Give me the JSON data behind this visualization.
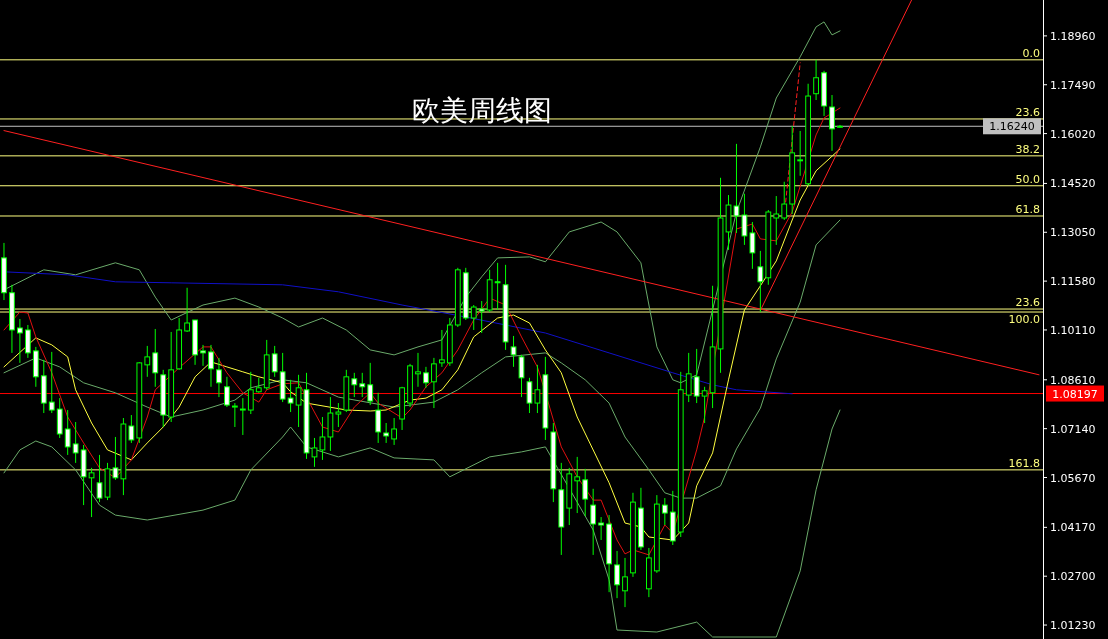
{
  "chart_data": {
    "type": "candlestick",
    "title": "欧美周线图",
    "categories": [
      null,
      null,
      null,
      null,
      null,
      null,
      null,
      null,
      null,
      null,
      null,
      null,
      null,
      null,
      null,
      null,
      null,
      null,
      null,
      null,
      null,
      null,
      null,
      null,
      null,
      null,
      null,
      null,
      null,
      null,
      null,
      null,
      null,
      null,
      null,
      null,
      null,
      null,
      null,
      null,
      null,
      null,
      null,
      null,
      null,
      null,
      null,
      null,
      null,
      null,
      null,
      null,
      null,
      null,
      null,
      null,
      null,
      null,
      null,
      null,
      null,
      null,
      null,
      null,
      null,
      null,
      null,
      null,
      null,
      null,
      null,
      null,
      null,
      null,
      null,
      null,
      null,
      null,
      null,
      null,
      null,
      null,
      null,
      null,
      null,
      null,
      null,
      null,
      null,
      null,
      null,
      null,
      null,
      null,
      null,
      null,
      null,
      null,
      null,
      null,
      null,
      null,
      null,
      null,
      null,
      null,
      null,
      null,
      null,
      null,
      null,
      null,
      null,
      null,
      null,
      null,
      null,
      null,
      null,
      null,
      null,
      null,
      null,
      null,
      null,
      null,
      null,
      null,
      null,
      null,
      null
    ],
    "ohlc": [
      [
        1.1228,
        1.1273,
        1.1101,
        1.1123
      ],
      [
        1.1123,
        1.1147,
        1.0942,
        1.1011
      ],
      [
        1.1017,
        1.1044,
        1.0912,
        1.1002
      ],
      [
        1.1011,
        1.1026,
        1.0927,
        1.0942
      ],
      [
        1.0948,
        1.096,
        1.084,
        1.087
      ],
      [
        1.0873,
        1.0921,
        1.0761,
        1.0791
      ],
      [
        1.0794,
        1.0945,
        1.0761,
        1.077
      ],
      [
        1.0773,
        1.0806,
        1.0686,
        1.0698
      ],
      [
        1.0713,
        1.077,
        1.0635,
        1.0659
      ],
      [
        1.0668,
        1.0734,
        1.0611,
        1.0641
      ],
      [
        1.065,
        1.0665,
        1.0484,
        1.0569
      ],
      [
        1.0566,
        1.0596,
        1.0448,
        1.0581
      ],
      [
        1.0551,
        1.0635,
        1.0493,
        1.0505
      ],
      [
        1.0508,
        1.0611,
        1.0499,
        1.0593
      ],
      [
        1.0596,
        1.0689,
        1.056,
        1.0566
      ],
      [
        1.0563,
        1.0746,
        1.0514,
        1.0728
      ],
      [
        1.0722,
        1.0755,
        1.0671,
        1.068
      ],
      [
        1.0686,
        1.0914,
        1.0671,
        1.0912
      ],
      [
        1.0906,
        1.0963,
        1.087,
        1.093
      ],
      [
        1.0942,
        1.1014,
        1.084,
        1.0882
      ],
      [
        1.0876,
        1.0891,
        1.0719,
        1.0755
      ],
      [
        1.0749,
        1.1005,
        1.0734,
        1.0891
      ],
      [
        1.0894,
        1.1047,
        1.0891,
        1.1011
      ],
      [
        1.1008,
        1.1138,
        1.1005,
        1.1032
      ],
      [
        1.1041,
        1.1041,
        1.0906,
        1.0936
      ],
      [
        1.0948,
        1.0966,
        1.0903,
        1.0942
      ],
      [
        1.0945,
        1.0966,
        1.084,
        1.0894
      ],
      [
        1.0891,
        1.0927,
        1.0809,
        1.0852
      ],
      [
        1.084,
        1.087,
        1.0779,
        1.0785
      ],
      [
        1.0782,
        1.0791,
        1.0719,
        1.0782
      ],
      [
        1.0773,
        1.0806,
        1.0695,
        1.0773
      ],
      [
        1.077,
        1.0885,
        1.0758,
        1.0831
      ],
      [
        1.0825,
        1.0867,
        1.0822,
        1.0837
      ],
      [
        1.0837,
        1.0981,
        1.0831,
        1.0936
      ],
      [
        1.0939,
        1.0963,
        1.087,
        1.0885
      ],
      [
        1.0885,
        1.0942,
        1.0794,
        1.0803
      ],
      [
        1.0806,
        1.0861,
        1.0764,
        1.0791
      ],
      [
        1.0785,
        1.0876,
        1.0719,
        1.0837
      ],
      [
        1.0831,
        1.0882,
        1.0623,
        1.0641
      ],
      [
        1.0629,
        1.0686,
        1.0599,
        1.0656
      ],
      [
        1.065,
        1.0749,
        1.062,
        1.0689
      ],
      [
        1.0689,
        1.0809,
        1.0647,
        1.0761
      ],
      [
        1.0758,
        1.0791,
        1.0719,
        1.0764
      ],
      [
        1.077,
        1.0891,
        1.0764,
        1.087
      ],
      [
        1.0864,
        1.0882,
        1.0809,
        1.0846
      ],
      [
        1.0849,
        1.0882,
        1.0809,
        1.084
      ],
      [
        1.0846,
        1.0912,
        1.0785,
        1.0797
      ],
      [
        1.077,
        1.0822,
        1.0671,
        1.0704
      ],
      [
        1.0701,
        1.0731,
        1.0671,
        1.0692
      ],
      [
        1.0683,
        1.0746,
        1.0665,
        1.0713
      ],
      [
        1.0743,
        1.084,
        1.071,
        1.0837
      ],
      [
        1.0791,
        1.0909,
        1.0779,
        1.0903
      ],
      [
        1.0879,
        1.0942,
        1.084,
        1.0885
      ],
      [
        1.0882,
        1.09,
        1.0837,
        1.0852
      ],
      [
        1.0855,
        1.0927,
        1.0776,
        1.0909
      ],
      [
        1.0912,
        1.1011,
        1.09,
        1.0921
      ],
      [
        1.0912,
        1.1047,
        1.0903,
        1.1026
      ],
      [
        1.1026,
        1.1198,
        1.102,
        1.1192
      ],
      [
        1.1183,
        1.1198,
        1.1041,
        1.1047
      ],
      [
        1.1047,
        1.1086,
        1.1011,
        1.108
      ],
      [
        1.1074,
        1.1098,
        1.1002,
        1.1068
      ],
      [
        1.1071,
        1.1192,
        1.1065,
        1.1162
      ],
      [
        1.1156,
        1.1213,
        1.1071,
        1.1153
      ],
      [
        1.1147,
        1.1207,
        1.0951,
        1.0975
      ],
      [
        1.096,
        1.0993,
        1.09,
        1.0936
      ],
      [
        1.093,
        1.0936,
        1.0809,
        1.0867
      ],
      [
        1.0855,
        1.0867,
        1.0761,
        1.0791
      ],
      [
        1.0791,
        1.0906,
        1.0761,
        1.0831
      ],
      [
        1.0876,
        1.093,
        1.068,
        1.0716
      ],
      [
        1.0704,
        1.0731,
        1.0493,
        1.0533
      ],
      [
        1.053,
        1.0611,
        1.0334,
        1.0418
      ],
      [
        1.0475,
        1.0596,
        1.0424,
        1.0578
      ],
      [
        1.0557,
        1.0629,
        1.046,
        1.0569
      ],
      [
        1.056,
        1.0593,
        1.0451,
        1.0502
      ],
      [
        1.0484,
        1.0533,
        1.0334,
        1.0427
      ],
      [
        1.043,
        1.0448,
        1.0379,
        1.0424
      ],
      [
        1.0427,
        1.0454,
        1.0222,
        1.0307
      ],
      [
        1.0304,
        1.0346,
        1.0204,
        1.0244
      ],
      [
        1.0226,
        1.0325,
        1.0177,
        1.0268
      ],
      [
        1.028,
        1.0521,
        1.0268,
        1.0493
      ],
      [
        1.0475,
        1.0536,
        1.0349,
        1.0358
      ],
      [
        1.0232,
        1.0355,
        1.0207,
        1.0325
      ],
      [
        1.0286,
        1.0514,
        1.028,
        1.0487
      ],
      [
        1.0484,
        1.0505,
        1.0424,
        1.046
      ],
      [
        1.0463,
        1.0527,
        1.0364,
        1.0376
      ],
      [
        1.0403,
        1.0885,
        1.0388,
        1.0831
      ],
      [
        1.0815,
        1.0942,
        1.0794,
        1.0879
      ],
      [
        1.087,
        1.0954,
        1.0791,
        1.0812
      ],
      [
        1.0812,
        1.084,
        1.0731,
        1.0828
      ],
      [
        1.0822,
        1.1144,
        1.0776,
        1.096
      ],
      [
        1.0954,
        1.1469,
        1.0882,
        1.1348
      ],
      [
        1.1306,
        1.1417,
        1.1252,
        1.1387
      ],
      [
        1.1384,
        1.1571,
        1.1303,
        1.1354
      ],
      [
        1.1357,
        1.1421,
        1.1267,
        1.1294
      ],
      [
        1.1303,
        1.1336,
        1.1195,
        1.1243
      ],
      [
        1.1201,
        1.1249,
        1.1065,
        1.1156
      ],
      [
        1.1168,
        1.1372,
        1.1147,
        1.1366
      ],
      [
        1.1348,
        1.1414,
        1.1267,
        1.136
      ],
      [
        1.1348,
        1.1457,
        1.1342,
        1.139
      ],
      [
        1.139,
        1.1625,
        1.136,
        1.1544
      ],
      [
        1.152,
        1.161,
        1.1475,
        1.1523
      ],
      [
        1.1451,
        1.1752,
        1.1445,
        1.1715
      ],
      [
        1.1722,
        1.1824,
        1.1703,
        1.177
      ],
      [
        1.1785,
        1.1791,
        1.1655,
        1.1685
      ],
      [
        1.1682,
        1.1718,
        1.155,
        1.1616
      ],
      [
        1.1624,
        1.1628,
        1.162,
        1.1624
      ],
      null,
      null,
      null,
      null,
      null,
      null,
      null,
      null,
      null,
      null,
      null,
      null,
      null,
      null,
      null,
      null,
      null,
      null,
      null,
      null,
      null,
      null,
      null,
      null,
      null
    ],
    "series": [
      {
        "type": "line",
        "color": "#6aaa6a",
        "values": [
          1.1132,
          null,
          null,
          null,
          null,
          1.1192,
          null,
          null,
          null,
          1.1177,
          null,
          null,
          null,
          null,
          1.1213,
          null,
          null,
          1.1192,
          null,
          1.111,
          null,
          1.1041,
          null,
          null,
          null,
          1.1086,
          null,
          null,
          null,
          1.1107,
          null,
          null,
          1.108,
          null,
          null,
          1.1047,
          null,
          1.102,
          null,
          null,
          1.1047,
          null,
          null,
          1.1011,
          null,
          null,
          1.0951,
          null,
          null,
          1.0936,
          null,
          null,
          1.096,
          null,
          null,
          1.0981,
          null,
          null,
          1.111,
          null,
          1.1171,
          null,
          1.1228,
          null,
          null,
          null,
          1.1231,
          null,
          1.1216,
          null,
          null,
          1.1306,
          null,
          null,
          null,
          1.1336,
          null,
          1.1306,
          null,
          null,
          1.1213,
          null,
          1.096,
          null,
          1.0861,
          1.0852,
          null,
          1.0876,
          null,
          null,
          null,
          null,
          1.1366,
          null,
          null,
          1.1562,
          null,
          1.1709,
          null,
          null,
          1.1833,
          null,
          1.1923,
          1.1938,
          1.1899,
          1.1911,
          null,
          null,
          null,
          null,
          null,
          null,
          null,
          null,
          null,
          null,
          null,
          null,
          null,
          null,
          null,
          null,
          null,
          null,
          null,
          null,
          null,
          null,
          null,
          null,
          null
        ]
      },
      {
        "type": "line",
        "color": "#6aaa6a",
        "values": [
          1.0882,
          null,
          null,
          null,
          1.0927,
          null,
          null,
          1.09,
          null,
          null,
          1.0852,
          null,
          null,
          null,
          1.0822,
          null,
          null,
          null,
          1.0779,
          null,
          null,
          1.0749,
          null,
          null,
          null,
          1.077,
          null,
          null,
          null,
          1.08,
          null,
          1.0837,
          null,
          null,
          null,
          1.0861,
          null,
          null,
          1.0852,
          null,
          null,
          null,
          1.0809,
          null,
          null,
          null,
          null,
          null,
          null,
          1.0779,
          null,
          null,
          null,
          null,
          1.0794,
          null,
          null,
          1.0831,
          null,
          null,
          1.0882,
          null,
          null,
          1.093,
          null,
          null,
          null,
          null,
          1.0942,
          null,
          1.0912,
          null,
          null,
          1.0861,
          null,
          null,
          1.0791,
          null,
          1.0689,
          null,
          null,
          1.059,
          null,
          1.0521,
          null,
          1.0505,
          null,
          1.0505,
          null,
          null,
          1.0542,
          null,
          1.0653,
          null,
          null,
          1.0776,
          null,
          1.0924,
          null,
          null,
          1.1095,
          null,
          1.1267,
          null,
          null,
          1.1342,
          null,
          null,
          null,
          null,
          null,
          null,
          null,
          null,
          null,
          null,
          null,
          null,
          null,
          null,
          null,
          null,
          null,
          null,
          null,
          null,
          null,
          null,
          null,
          null,
          null
        ]
      },
      {
        "type": "line",
        "color": "#6aaa6a",
        "values": [
          1.0581,
          null,
          1.065,
          null,
          1.0677,
          null,
          1.0659,
          null,
          null,
          1.059,
          null,
          null,
          1.0484,
          null,
          1.0454,
          null,
          null,
          null,
          1.0439,
          null,
          null,
          null,
          null,
          null,
          null,
          1.0469,
          null,
          null,
          null,
          1.0499,
          null,
          1.059,
          null,
          null,
          null,
          1.0689,
          1.0719,
          null,
          1.0659,
          null,
          null,
          null,
          1.0629,
          null,
          null,
          null,
          1.0656,
          null,
          null,
          1.0626,
          null,
          null,
          null,
          null,
          1.062,
          null,
          1.0569,
          null,
          null,
          null,
          null,
          1.0629,
          null,
          null,
          null,
          1.0644,
          null,
          null,
          1.0659,
          null,
          null,
          null,
          null,
          null,
          1.0409,
          null,
          1.0259,
          1.0108,
          null,
          null,
          null,
          null,
          1.0102,
          null,
          null,
          null,
          null,
          1.0132,
          null,
          1.0087,
          null,
          null,
          null,
          null,
          null,
          null,
          null,
          1.0087,
          null,
          null,
          1.0286,
          null,
          1.053,
          null,
          1.0713,
          1.077,
          null,
          null,
          null,
          null,
          null,
          null,
          null,
          null,
          null,
          null,
          null,
          null,
          null,
          null,
          null,
          null,
          null,
          null,
          null,
          null,
          null,
          null,
          null,
          null,
          null
        ]
      },
      {
        "type": "line",
        "color": "#1010c8",
        "values": [
          1.1186,
          null,
          null,
          null,
          null,
          null,
          null,
          null,
          1.1177,
          null,
          null,
          null,
          null,
          null,
          1.1156,
          null,
          null,
          null,
          null,
          null,
          null,
          1.1153,
          null,
          null,
          null,
          null,
          null,
          null,
          null,
          null,
          null,
          null,
          null,
          null,
          null,
          1.1147,
          null,
          null,
          null,
          null,
          null,
          null,
          1.1126,
          null,
          null,
          null,
          null,
          null,
          null,
          null,
          1.1086,
          null,
          null,
          null,
          null,
          null,
          null,
          null,
          1.105,
          null,
          null,
          null,
          null,
          null,
          null,
          null,
          null,
          null,
          1.1002,
          null,
          null,
          null,
          null,
          null,
          null,
          null,
          1.0942,
          null,
          null,
          null,
          null,
          null,
          null,
          null,
          1.0882,
          null,
          null,
          null,
          null,
          1.0846,
          null,
          null,
          1.0831,
          null,
          null,
          null,
          null,
          null,
          null,
          1.0819,
          null,
          null,
          null,
          null,
          null,
          null,
          null,
          null,
          null,
          null,
          null,
          null,
          null,
          null,
          null,
          null,
          null,
          null,
          null,
          null,
          null,
          null,
          null,
          null,
          null,
          null,
          null,
          null,
          null,
          null,
          null
        ]
      },
      {
        "type": "line",
        "color": "#ffff40",
        "values": [
          1.09,
          null,
          null,
          null,
          1.0987,
          null,
          1.0966,
          null,
          1.093,
          1.0831,
          null,
          1.0731,
          null,
          1.065,
          null,
          null,
          1.062,
          null,
          1.0671,
          null,
          1.0719,
          null,
          1.0779,
          null,
          1.087,
          null,
          1.0915,
          null,
          1.09,
          null,
          1.0885,
          null,
          1.087,
          null,
          null,
          1.0852,
          1.0825,
          null,
          1.0791,
          null,
          null,
          null,
          null,
          1.077,
          null,
          null,
          1.0767,
          null,
          1.077,
          null,
          null,
          1.08,
          null,
          1.0806,
          null,
          1.0831,
          null,
          1.0891,
          null,
          1.099,
          null,
          null,
          1.1047,
          null,
          1.1056,
          null,
          1.1032,
          null,
          1.0951,
          null,
          1.0882,
          null,
          1.0749,
          null,
          null,
          null,
          1.0551,
          null,
          1.043,
          null,
          1.0418,
          1.0388,
          null,
          null,
          1.0379,
          null,
          1.043,
          1.0542,
          null,
          1.0641,
          null,
          1.0861,
          null,
          1.1071,
          null,
          1.1144,
          null,
          1.1219,
          null,
          1.1342,
          1.1402,
          null,
          1.149,
          null,
          null,
          1.1556,
          null,
          null,
          null,
          null,
          null,
          null,
          null,
          null,
          null,
          null,
          null,
          null,
          null,
          null,
          null,
          null,
          null,
          null,
          null,
          null,
          null,
          null,
          null,
          null,
          null
        ]
      },
      {
        "type": "line",
        "color": "#e01010",
        "values": [
          1.1011,
          null,
          1.1065,
          1.1062,
          1.099,
          null,
          1.0882,
          null,
          1.0749,
          null,
          1.0671,
          null,
          1.0596,
          null,
          1.0566,
          null,
          1.062,
          null,
          1.0749,
          1.0831,
          null,
          null,
          1.0897,
          null,
          null,
          1.096,
          1.096,
          null,
          1.0882,
          null,
          1.0822,
          null,
          1.0794,
          1.0831,
          null,
          1.0849,
          null,
          1.0852,
          null,
          null,
          1.0719,
          null,
          1.0704,
          null,
          1.0779,
          null,
          1.0822,
          1.0791,
          null,
          null,
          1.0746,
          1.077,
          null,
          1.084,
          null,
          1.0882,
          null,
          1.0951,
          null,
          1.1041,
          null,
          1.1107,
          null,
          1.1086,
          null,
          1.099,
          null,
          1.09,
          1.0822,
          null,
          1.0659,
          null,
          1.0569,
          null,
          1.0499,
          1.0499,
          null,
          1.0379,
          1.0337,
          1.0349,
          null,
          1.0334,
          null,
          1.0424,
          1.04,
          null,
          null,
          1.065,
          1.0749,
          null,
          null,
          null,
          1.1315,
          null,
          1.133,
          1.1285,
          null,
          1.1279,
          null,
          1.1366,
          null,
          null,
          1.1598,
          1.1649,
          null,
          1.1679,
          null,
          null,
          null,
          null,
          null,
          null,
          null,
          null,
          null,
          null,
          null,
          null,
          null,
          null,
          null,
          null,
          null,
          null,
          null,
          null,
          null,
          null,
          null,
          null,
          null
        ]
      },
      {
        "type": "line",
        "color": "#ff2020",
        "values": [
          1.1611,
          null,
          null,
          null,
          null,
          null,
          null,
          null,
          null,
          null,
          null,
          null,
          null,
          null,
          null,
          null,
          null,
          null,
          null,
          null,
          null,
          null,
          null,
          null,
          null,
          null,
          null,
          null,
          null,
          null,
          null,
          null,
          null,
          null,
          null,
          null,
          null,
          null,
          null,
          null,
          null,
          null,
          null,
          null,
          null,
          null,
          null,
          null,
          null,
          null,
          null,
          null,
          null,
          null,
          null,
          null,
          null,
          null,
          null,
          null,
          null,
          null,
          null,
          null,
          null,
          null,
          null,
          null,
          null,
          null,
          null,
          null,
          null,
          null,
          null,
          null,
          null,
          null,
          null,
          null,
          null,
          null,
          null,
          null,
          null,
          null,
          null,
          null,
          null,
          null,
          null,
          null,
          null,
          null,
          null,
          null,
          null,
          null,
          null,
          null,
          null,
          null,
          null,
          null,
          null,
          null,
          null,
          null,
          null,
          null,
          null,
          null,
          null,
          null,
          null,
          null,
          null,
          null,
          null,
          null,
          null,
          null,
          null,
          null,
          null,
          null,
          null,
          null,
          null,
          null,
          1.0876
        ]
      },
      {
        "type": "line",
        "color": "#ff2020",
        "values": [
          null,
          null,
          null,
          null,
          null,
          null,
          null,
          null,
          null,
          null,
          null,
          null,
          null,
          null,
          null,
          null,
          null,
          null,
          null,
          null,
          null,
          null,
          null,
          null,
          null,
          null,
          null,
          null,
          null,
          null,
          null,
          null,
          null,
          null,
          null,
          null,
          null,
          null,
          null,
          null,
          null,
          null,
          null,
          null,
          null,
          null,
          null,
          null,
          null,
          null,
          null,
          null,
          null,
          null,
          null,
          null,
          null,
          null,
          null,
          null,
          null,
          null,
          null,
          null,
          null,
          null,
          null,
          null,
          null,
          null,
          null,
          null,
          null,
          null,
          null,
          null,
          null,
          null,
          null,
          null,
          null,
          null,
          null,
          null,
          null,
          null,
          null,
          null,
          null,
          null,
          null,
          null,
          null,
          null,
          null,
          1.107,
          null,
          null,
          null,
          null,
          null,
          null,
          null,
          null,
          null,
          null,
          null,
          null,
          null,
          null,
          null,
          null,
          null,
          null,
          1.2004,
          null,
          null,
          null,
          null,
          null,
          null,
          null,
          null,
          null,
          null,
          null,
          null,
          null,
          null,
          null,
          null
        ]
      },
      {
        "type": "line",
        "color": "#ff2020",
        "line_style": "dashed",
        "values": [
          null,
          null,
          null,
          null,
          null,
          null,
          null,
          null,
          null,
          null,
          null,
          null,
          null,
          null,
          null,
          null,
          null,
          null,
          null,
          null,
          null,
          null,
          null,
          null,
          null,
          null,
          null,
          null,
          null,
          null,
          null,
          null,
          null,
          null,
          null,
          null,
          null,
          null,
          null,
          null,
          null,
          null,
          null,
          null,
          null,
          null,
          null,
          null,
          null,
          null,
          null,
          null,
          null,
          null,
          null,
          null,
          null,
          null,
          null,
          null,
          null,
          null,
          null,
          null,
          null,
          null,
          null,
          null,
          null,
          null,
          null,
          null,
          null,
          null,
          null,
          null,
          null,
          null,
          null,
          null,
          null,
          null,
          null,
          null,
          null,
          null,
          null,
          null,
          null,
          null,
          null,
          null,
          null,
          null,
          null,
          null,
          null,
          null,
          1.1354,
          null,
          1.1815,
          null,
          null,
          null,
          null,
          null,
          null,
          null,
          null,
          null,
          null,
          null,
          null,
          null,
          null,
          null,
          null,
          null,
          null,
          null,
          null,
          null,
          null,
          null,
          null,
          null,
          null,
          null,
          null,
          null,
          null
        ]
      }
    ],
    "ylim": [
      1.0081,
      1.2004
    ],
    "yticks": [
      {
        "value": 1.1896,
        "label": "1.18960"
      },
      {
        "value": 1.1749,
        "label": "1.17490"
      },
      {
        "value": 1.1602,
        "label": "1.16020"
      },
      {
        "value": 1.1452,
        "label": "1.14520"
      },
      {
        "value": 1.1305,
        "label": "1.13050"
      },
      {
        "value": 1.1158,
        "label": "1.11580"
      },
      {
        "value": 1.1011,
        "label": "1.10110"
      },
      {
        "value": 1.0861,
        "label": "1.08610"
      },
      {
        "value": 1.0714,
        "label": "1.07140"
      },
      {
        "value": 1.0567,
        "label": "1.05670"
      },
      {
        "value": 1.0417,
        "label": "1.04170"
      },
      {
        "value": 1.027,
        "label": "1.02700"
      },
      {
        "value": 1.0123,
        "label": "1.01230"
      }
    ],
    "ref_lines": [
      {
        "axis": "y",
        "value": 1.1624,
        "label": "1.16240",
        "color": "#c0c0c0"
      },
      {
        "axis": "y",
        "value": 1.08197,
        "label": "1.08197",
        "color": "#ff0000"
      },
      {
        "axis": "y",
        "value": 1.1824,
        "color": "#ffff80"
      },
      {
        "axis": "y",
        "value": 1.1646,
        "color": "#ffff80"
      },
      {
        "axis": "y",
        "value": 1.1535,
        "color": "#ffff80"
      },
      {
        "axis": "y",
        "value": 1.1445,
        "color": "#ffff80"
      },
      {
        "axis": "y",
        "value": 1.1354,
        "color": "#ffff80"
      },
      {
        "axis": "y",
        "value": 1.1074,
        "color": "#ffff80"
      },
      {
        "axis": "y",
        "value": 1.1065,
        "color": "#ffff80"
      },
      {
        "axis": "y",
        "value": 1.059,
        "color": "#ffff80"
      }
    ],
    "annotations": [
      "0.0",
      "23.6",
      "38.2",
      "50.0",
      "61.8",
      "23.6",
      "100.0",
      "161.8"
    ]
  }
}
